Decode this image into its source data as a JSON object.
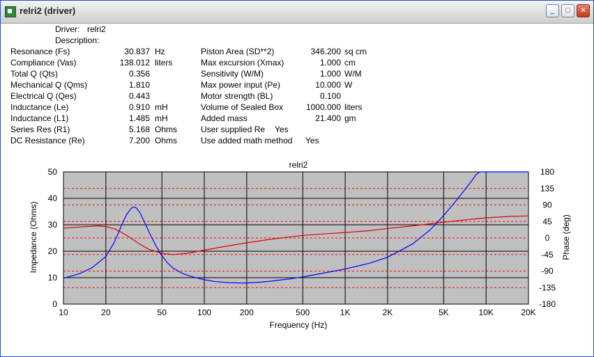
{
  "window": {
    "title": "relri2 (driver)",
    "controls": {
      "minimize": "_",
      "maximize": "□",
      "close": "×"
    }
  },
  "header": {
    "driver_label": "Driver:",
    "driver_value": "relri2",
    "description_label": "Description:"
  },
  "params_left": [
    {
      "label": "Resonance (Fs)",
      "value": "30.837",
      "unit": "Hz"
    },
    {
      "label": "Compliance (Vas)",
      "value": "138.012",
      "unit": "liters"
    },
    {
      "label": "Total Q (Qts)",
      "value": "0.356",
      "unit": ""
    },
    {
      "label": "Mechanical Q (Qms)",
      "value": "1.810",
      "unit": ""
    },
    {
      "label": "Electrical Q (Qes)",
      "value": "0.443",
      "unit": ""
    },
    {
      "label": "Inductance (Le)",
      "value": "0.910",
      "unit": "mH"
    },
    {
      "label": "Inductance (L1)",
      "value": "1.485",
      "unit": "mH"
    },
    {
      "label": "Series Res (R1)",
      "value": "5.168",
      "unit": "Ohms"
    },
    {
      "label": "DC Resistance (Re)",
      "value": "7.200",
      "unit": "Ohms"
    }
  ],
  "params_right": [
    {
      "label": "Piston Area (SD**2)",
      "value": "346.200",
      "unit": "sq cm"
    },
    {
      "label": "Max excursion (Xmax)",
      "value": "1.000",
      "unit": "cm"
    },
    {
      "label": "Sensitivity (W/M)",
      "value": "1.000",
      "unit": "W/M"
    },
    {
      "label": "Max power input (Pe)",
      "value": "10.000",
      "unit": "W"
    },
    {
      "label": "Motor strength (BL)",
      "value": "0.100",
      "unit": ""
    },
    {
      "label": "Volume of Sealed Box",
      "value": "1000.000",
      "unit": "liters"
    },
    {
      "label": "Added mass",
      "value": "21.400",
      "unit": "gm"
    },
    {
      "label": "User supplied Re",
      "value": "Yes",
      "unit": ""
    },
    {
      "label": "Use added math method",
      "value": "Yes",
      "unit": ""
    }
  ],
  "colors": {
    "plot_bg": "#c0c0c0",
    "impedance": "#0000ff",
    "phase": "#e00000",
    "major_grid": "#000000",
    "phase_grid": "#ff0000"
  },
  "chart_data": {
    "type": "line",
    "title": "relri2",
    "xlabel": "Frequency (Hz)",
    "ylabel": "Impedance (Ohms)",
    "y2label": "Phase (deg)",
    "xscale": "log",
    "xlim": [
      10,
      20000
    ],
    "ylim": [
      0,
      50
    ],
    "y2lim": [
      -180,
      180
    ],
    "x_ticks": [
      10,
      20,
      50,
      100,
      200,
      500,
      1000,
      2000,
      5000,
      10000,
      20000
    ],
    "x_tick_labels": [
      "10",
      "20",
      "50",
      "100",
      "200",
      "500",
      "1K",
      "2K",
      "5K",
      "10K",
      "20K"
    ],
    "y_ticks": [
      0,
      10,
      20,
      30,
      40,
      50
    ],
    "y2_ticks": [
      -180,
      -135,
      -90,
      -45,
      0,
      45,
      90,
      135,
      180
    ],
    "series": [
      {
        "axis": "left",
        "x": [
          10,
          13,
          16,
          20,
          23,
          26,
          28,
          30,
          31,
          32,
          33,
          35,
          38,
          42,
          46,
          50,
          55,
          60,
          70,
          80,
          100,
          120,
          150,
          180,
          200,
          250,
          300,
          400,
          500,
          700,
          1000,
          1500,
          2000,
          3000,
          4000,
          5000,
          6000,
          7000,
          8000,
          8500,
          9000,
          10000,
          15000,
          20000
        ],
        "y": [
          9.8,
          11.5,
          13.8,
          18.0,
          23.5,
          30.0,
          33.8,
          36.0,
          36.6,
          36.7,
          36.3,
          34.5,
          30.5,
          25.5,
          21.5,
          18.3,
          15.5,
          13.6,
          11.6,
          10.5,
          9.2,
          8.5,
          8.1,
          8.0,
          8.0,
          8.3,
          8.7,
          9.5,
          10.3,
          11.7,
          13.3,
          15.5,
          17.7,
          22.7,
          28.0,
          33.5,
          38.5,
          43.0,
          47.0,
          49.0,
          50.0,
          50.0,
          50.0,
          50.0
        ]
      },
      {
        "axis": "right",
        "x": [
          10,
          13,
          16,
          18,
          20,
          23,
          26,
          30,
          35,
          40,
          50,
          60,
          70,
          80,
          100,
          150,
          200,
          300,
          500,
          700,
          1000,
          1500,
          2000,
          3000,
          5000,
          7000,
          10000,
          15000,
          20000
        ],
        "y": [
          27,
          30,
          32,
          33,
          31,
          25,
          15,
          0,
          -17,
          -30,
          -42,
          -45,
          -43,
          -40,
          -33,
          -21,
          -13,
          -3,
          7,
          11,
          15,
          20,
          26,
          33,
          43,
          49,
          55,
          59,
          60
        ]
      }
    ]
  }
}
